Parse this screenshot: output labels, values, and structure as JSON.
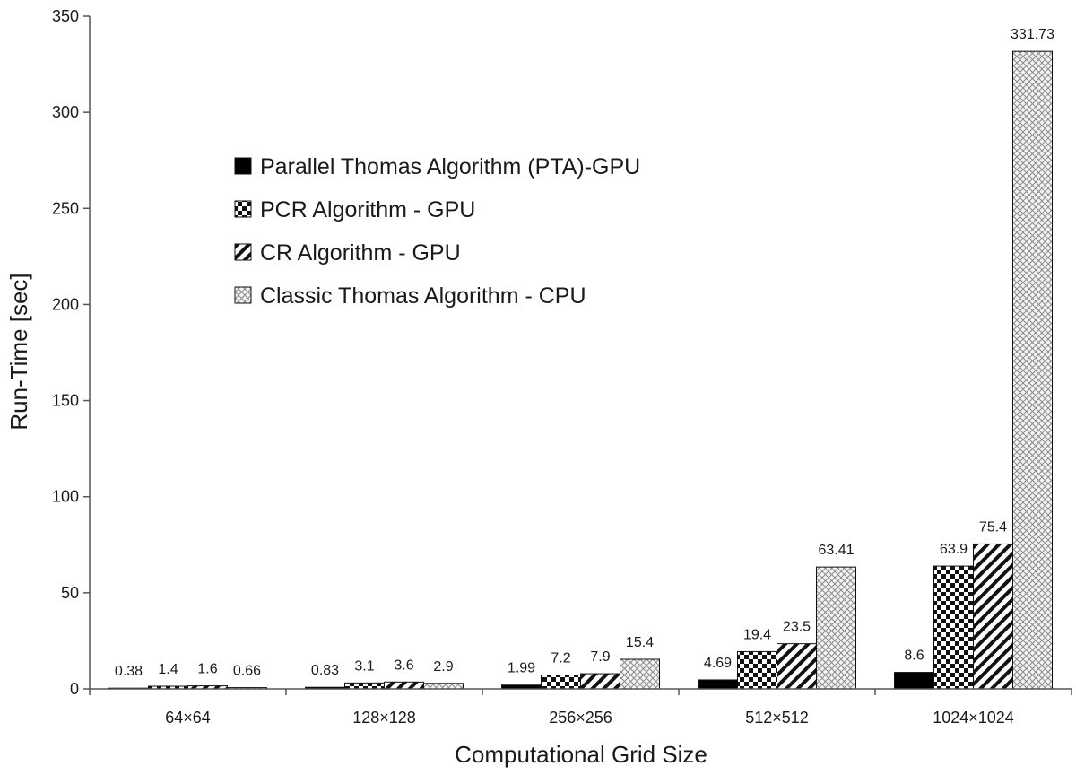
{
  "chart_data": {
    "type": "bar",
    "title": "",
    "xlabel": "Computational Grid Size",
    "ylabel": "Run-Time [sec]",
    "ylim": [
      0,
      350
    ],
    "yticks": [
      0,
      50,
      100,
      150,
      200,
      250,
      300,
      350
    ],
    "grid": false,
    "legend_position": "upper-left",
    "categories": [
      "64×64",
      "128×128",
      "256×256",
      "512×512",
      "1024×1024"
    ],
    "series": [
      {
        "name": "Parallel Thomas Algorithm (PTA)-GPU",
        "pattern": "solid",
        "values": [
          0.38,
          0.83,
          1.99,
          4.69,
          8.6
        ],
        "labels": [
          "0.38",
          "0.83",
          "1.99",
          "4.69",
          "8.6"
        ]
      },
      {
        "name": "PCR Algorithm - GPU",
        "pattern": "checker",
        "values": [
          1.4,
          3.1,
          7.2,
          19.4,
          63.9
        ],
        "labels": [
          "1.4",
          "3.1",
          "7.2",
          "19.4",
          "63.9"
        ]
      },
      {
        "name": "CR  Algorithm - GPU",
        "pattern": "diagonal",
        "values": [
          1.6,
          3.6,
          7.9,
          23.5,
          75.4
        ],
        "labels": [
          "1.6",
          "3.6",
          "7.9",
          "23.5",
          "75.4"
        ]
      },
      {
        "name": "Classic Thomas  Algorithm - CPU",
        "pattern": "crosshatch",
        "values": [
          0.66,
          2.9,
          15.4,
          63.41,
          331.73
        ],
        "labels": [
          "0.66",
          "2.9",
          "15.4",
          "63.41",
          "331.73"
        ]
      }
    ]
  }
}
